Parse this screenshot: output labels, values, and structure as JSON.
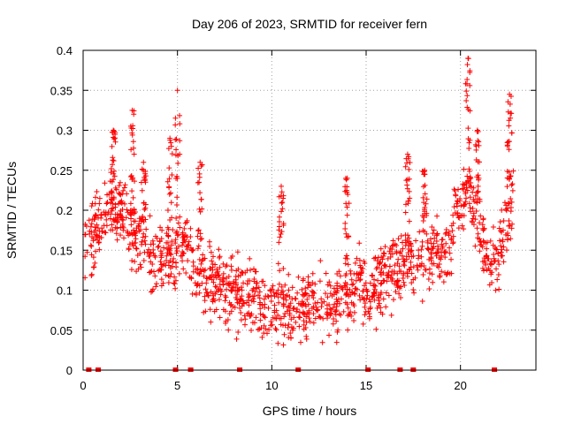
{
  "chart_data": {
    "type": "scatter",
    "title": "Day 206 of 2023, SRMTID for receiver fern",
    "xlabel": "GPS time / hours",
    "ylabel": "SRMTID / TECUs",
    "xlim": [
      0,
      24
    ],
    "ylim": [
      0,
      0.4
    ],
    "xticks": [
      0,
      5,
      10,
      15,
      20
    ],
    "yticks": [
      0,
      0.05,
      0.1,
      0.15,
      0.2,
      0.25,
      0.3,
      0.35,
      0.4
    ],
    "xtick_labels": [
      "0",
      "5",
      "10",
      "15",
      "20"
    ],
    "ytick_labels": [
      "0",
      "0.05",
      "0.1",
      "0.15",
      "0.2",
      "0.25",
      "0.3",
      "0.35",
      "0.4"
    ],
    "grid": true,
    "marker": "+",
    "color": "#ff0000",
    "baseline_marks_x": [
      0.3,
      0.8,
      4.9,
      5.7,
      8.3,
      11.4,
      15.1,
      16.8,
      17.5,
      21.8
    ],
    "trend": {
      "x": [
        0,
        0.5,
        1,
        1.5,
        2,
        3,
        4,
        5,
        5.5,
        6,
        7,
        8,
        9,
        10,
        11,
        12,
        13,
        14,
        14.5,
        15,
        15.5,
        16,
        17,
        18,
        19,
        19.5,
        20,
        20.5,
        21,
        21.5,
        22,
        22.5,
        22.8
      ],
      "y": [
        0.15,
        0.17,
        0.19,
        0.21,
        0.2,
        0.16,
        0.13,
        0.15,
        0.16,
        0.12,
        0.11,
        0.1,
        0.09,
        0.08,
        0.07,
        0.085,
        0.08,
        0.1,
        0.105,
        0.09,
        0.1,
        0.12,
        0.13,
        0.14,
        0.15,
        0.16,
        0.22,
        0.23,
        0.18,
        0.14,
        0.13,
        0.2,
        0.22
      ],
      "spread": 0.04
    },
    "spikes": [
      {
        "x": 1.6,
        "y": 0.3
      },
      {
        "x": 2.6,
        "y": 0.325
      },
      {
        "x": 3.2,
        "y": 0.26
      },
      {
        "x": 4.6,
        "y": 0.29
      },
      {
        "x": 5.0,
        "y": 0.35
      },
      {
        "x": 6.2,
        "y": 0.26
      },
      {
        "x": 10.5,
        "y": 0.23
      },
      {
        "x": 14.0,
        "y": 0.24
      },
      {
        "x": 17.2,
        "y": 0.27
      },
      {
        "x": 18.1,
        "y": 0.25
      },
      {
        "x": 20.4,
        "y": 0.39
      },
      {
        "x": 20.9,
        "y": 0.3
      },
      {
        "x": 22.6,
        "y": 0.345
      }
    ],
    "n_points": 1400
  }
}
